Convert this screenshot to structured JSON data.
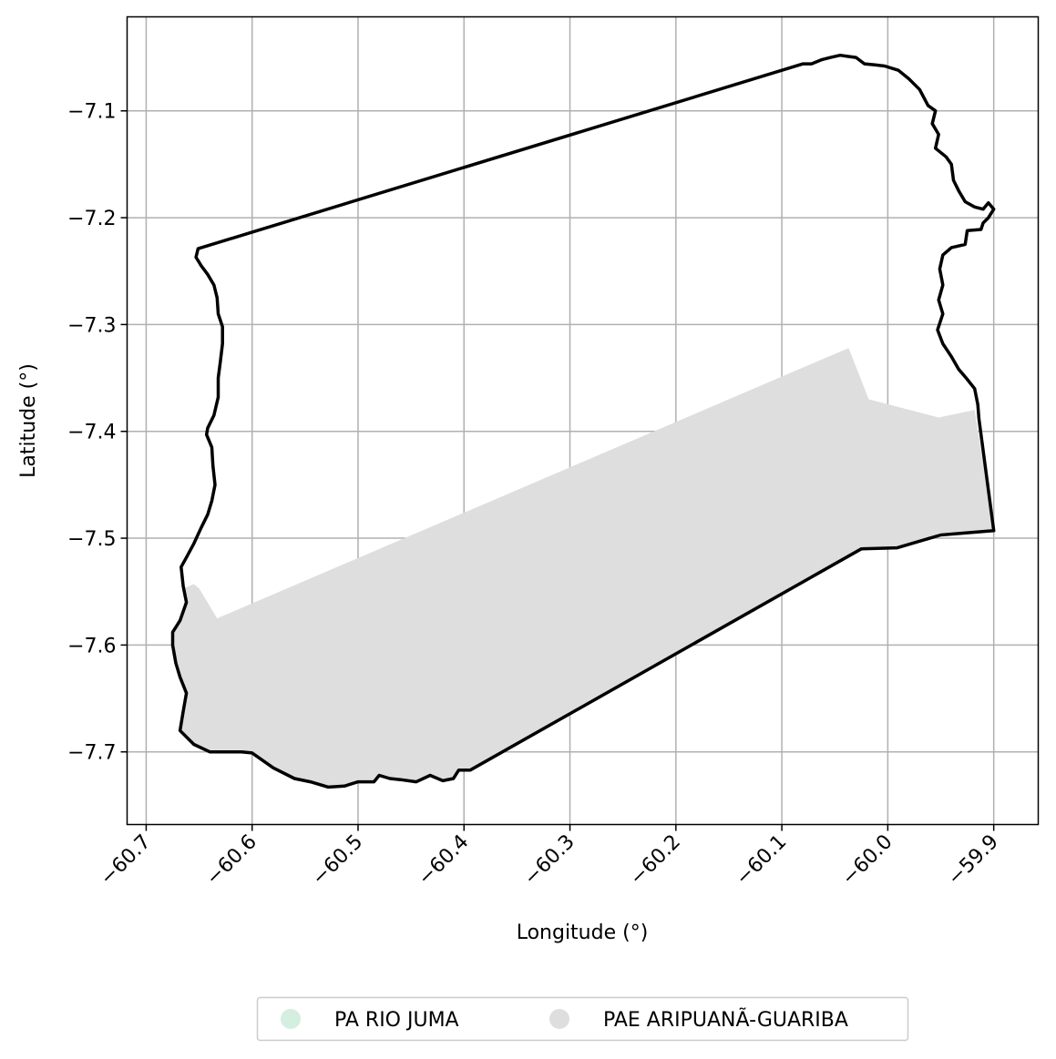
{
  "chart_data": {
    "type": "map",
    "xlabel": "Longitude (°)",
    "ylabel": "Latitude (°)",
    "xlim": [
      -60.718,
      -59.858
    ],
    "ylim": [
      -7.768,
      -7.012
    ],
    "grid": true,
    "x_ticks": [
      {
        "value": -60.7,
        "label": "−60.7"
      },
      {
        "value": -60.6,
        "label": "−60.6"
      },
      {
        "value": -60.5,
        "label": "−60.5"
      },
      {
        "value": -60.4,
        "label": "−60.4"
      },
      {
        "value": -60.3,
        "label": "−60.3"
      },
      {
        "value": -60.2,
        "label": "−60.2"
      },
      {
        "value": -60.1,
        "label": "−60.1"
      },
      {
        "value": -60.0,
        "label": "−60.0"
      },
      {
        "value": -59.9,
        "label": "−59.9"
      }
    ],
    "y_ticks": [
      {
        "value": -7.1,
        "label": "−7.1"
      },
      {
        "value": -7.2,
        "label": "−7.2"
      },
      {
        "value": -7.3,
        "label": "−7.3"
      },
      {
        "value": -7.4,
        "label": "−7.4"
      },
      {
        "value": -7.5,
        "label": "−7.5"
      },
      {
        "value": -7.6,
        "label": "−7.6"
      },
      {
        "value": -7.7,
        "label": "−7.7"
      }
    ],
    "legend_placement": "bottom-center",
    "legend": [
      {
        "name": "PA RIO JUMA",
        "color": "#d4eedf"
      },
      {
        "name": "PAE ARIPUANÃ-GUARIBA",
        "color": "#dedede"
      }
    ],
    "layers": [
      {
        "name": "PAE ARIPUANÃ-GUARIBA",
        "role": "filled-area",
        "fill": "#dedede",
        "coords": [
          [
            -60.665,
            -7.547
          ],
          [
            -60.655,
            -7.543
          ],
          [
            -60.65,
            -7.547
          ],
          [
            -60.633,
            -7.575
          ],
          [
            -60.037,
            -7.322
          ],
          [
            -60.018,
            -7.37
          ],
          [
            -59.952,
            -7.387
          ],
          [
            -59.918,
            -7.38
          ],
          [
            -59.9,
            -7.493
          ],
          [
            -59.95,
            -7.495
          ],
          [
            -59.98,
            -7.505
          ],
          [
            -59.991,
            -7.509
          ],
          [
            -60.025,
            -7.51
          ],
          [
            -60.394,
            -7.717
          ],
          [
            -60.405,
            -7.717
          ],
          [
            -60.41,
            -7.725
          ],
          [
            -60.42,
            -7.727
          ],
          [
            -60.432,
            -7.722
          ],
          [
            -60.445,
            -7.728
          ],
          [
            -60.46,
            -7.726
          ],
          [
            -60.47,
            -7.725
          ],
          [
            -60.48,
            -7.722
          ],
          [
            -60.485,
            -7.728
          ],
          [
            -60.5,
            -7.728
          ],
          [
            -60.513,
            -7.732
          ],
          [
            -60.528,
            -7.733
          ],
          [
            -60.545,
            -7.728
          ],
          [
            -60.56,
            -7.725
          ],
          [
            -60.58,
            -7.715
          ],
          [
            -60.6,
            -7.701
          ],
          [
            -60.61,
            -7.7
          ],
          [
            -60.625,
            -7.7
          ],
          [
            -60.64,
            -7.7
          ],
          [
            -60.655,
            -7.693
          ],
          [
            -60.668,
            -7.68
          ],
          [
            -60.665,
            -7.662
          ],
          [
            -60.662,
            -7.645
          ],
          [
            -60.668,
            -7.63
          ],
          [
            -60.672,
            -7.617
          ],
          [
            -60.675,
            -7.6
          ],
          [
            -60.675,
            -7.588
          ],
          [
            -60.668,
            -7.577
          ],
          [
            -60.663,
            -7.565
          ]
        ]
      },
      {
        "name": "outline",
        "role": "boundary",
        "stroke": "#000000",
        "coords": [
          [
            -60.651,
            -7.229
          ],
          [
            -60.08,
            -7.056
          ],
          [
            -60.072,
            -7.056
          ],
          [
            -60.062,
            -7.052
          ],
          [
            -60.054,
            -7.05
          ],
          [
            -60.045,
            -7.048
          ],
          [
            -60.038,
            -7.049
          ],
          [
            -60.03,
            -7.05
          ],
          [
            -60.022,
            -7.056
          ],
          [
            -60.012,
            -7.057
          ],
          [
            -60.003,
            -7.058
          ],
          [
            -59.99,
            -7.062
          ],
          [
            -59.98,
            -7.07
          ],
          [
            -59.97,
            -7.08
          ],
          [
            -59.962,
            -7.095
          ],
          [
            -59.955,
            -7.1
          ],
          [
            -59.958,
            -7.112
          ],
          [
            -59.952,
            -7.122
          ],
          [
            -59.955,
            -7.135
          ],
          [
            -59.945,
            -7.143
          ],
          [
            -59.94,
            -7.15
          ],
          [
            -59.938,
            -7.165
          ],
          [
            -59.933,
            -7.175
          ],
          [
            -59.927,
            -7.185
          ],
          [
            -59.918,
            -7.19
          ],
          [
            -59.91,
            -7.192
          ],
          [
            -59.905,
            -7.186
          ],
          [
            -59.9,
            -7.192
          ],
          [
            -59.905,
            -7.2
          ],
          [
            -59.91,
            -7.205
          ],
          [
            -59.912,
            -7.211
          ],
          [
            -59.925,
            -7.212
          ],
          [
            -59.927,
            -7.225
          ],
          [
            -59.94,
            -7.228
          ],
          [
            -59.948,
            -7.235
          ],
          [
            -59.951,
            -7.248
          ],
          [
            -59.948,
            -7.263
          ],
          [
            -59.952,
            -7.277
          ],
          [
            -59.948,
            -7.29
          ],
          [
            -59.953,
            -7.305
          ],
          [
            -59.948,
            -7.318
          ],
          [
            -59.94,
            -7.33
          ],
          [
            -59.933,
            -7.342
          ],
          [
            -59.926,
            -7.35
          ],
          [
            -59.918,
            -7.36
          ],
          [
            -59.915,
            -7.375
          ],
          [
            -59.914,
            -7.388
          ],
          [
            -59.9,
            -7.493
          ],
          [
            -59.95,
            -7.497
          ],
          [
            -59.991,
            -7.509
          ],
          [
            -60.025,
            -7.51
          ],
          [
            -60.394,
            -7.717
          ],
          [
            -60.405,
            -7.717
          ],
          [
            -60.41,
            -7.725
          ],
          [
            -60.42,
            -7.727
          ],
          [
            -60.432,
            -7.722
          ],
          [
            -60.445,
            -7.728
          ],
          [
            -60.46,
            -7.726
          ],
          [
            -60.47,
            -7.725
          ],
          [
            -60.48,
            -7.722
          ],
          [
            -60.485,
            -7.728
          ],
          [
            -60.5,
            -7.728
          ],
          [
            -60.513,
            -7.732
          ],
          [
            -60.528,
            -7.733
          ],
          [
            -60.545,
            -7.728
          ],
          [
            -60.56,
            -7.725
          ],
          [
            -60.58,
            -7.715
          ],
          [
            -60.6,
            -7.701
          ],
          [
            -60.61,
            -7.7
          ],
          [
            -60.625,
            -7.7
          ],
          [
            -60.64,
            -7.7
          ],
          [
            -60.655,
            -7.693
          ],
          [
            -60.668,
            -7.68
          ],
          [
            -60.665,
            -7.662
          ],
          [
            -60.662,
            -7.645
          ],
          [
            -60.668,
            -7.63
          ],
          [
            -60.672,
            -7.617
          ],
          [
            -60.675,
            -7.6
          ],
          [
            -60.675,
            -7.588
          ],
          [
            -60.668,
            -7.577
          ],
          [
            -60.662,
            -7.56
          ],
          [
            -60.665,
            -7.545
          ],
          [
            -60.667,
            -7.527
          ],
          [
            -60.662,
            -7.518
          ],
          [
            -60.655,
            -7.505
          ],
          [
            -60.648,
            -7.49
          ],
          [
            -60.642,
            -7.478
          ],
          [
            -60.638,
            -7.465
          ],
          [
            -60.635,
            -7.45
          ],
          [
            -60.637,
            -7.432
          ],
          [
            -60.638,
            -7.415
          ],
          [
            -60.643,
            -7.403
          ],
          [
            -60.642,
            -7.397
          ],
          [
            -60.636,
            -7.385
          ],
          [
            -60.632,
            -7.368
          ],
          [
            -60.632,
            -7.35
          ],
          [
            -60.63,
            -7.335
          ],
          [
            -60.628,
            -7.318
          ],
          [
            -60.628,
            -7.302
          ],
          [
            -60.632,
            -7.29
          ],
          [
            -60.633,
            -7.275
          ],
          [
            -60.636,
            -7.263
          ],
          [
            -60.642,
            -7.253
          ],
          [
            -60.648,
            -7.245
          ],
          [
            -60.653,
            -7.237
          ],
          [
            -60.651,
            -7.229
          ]
        ]
      }
    ]
  }
}
